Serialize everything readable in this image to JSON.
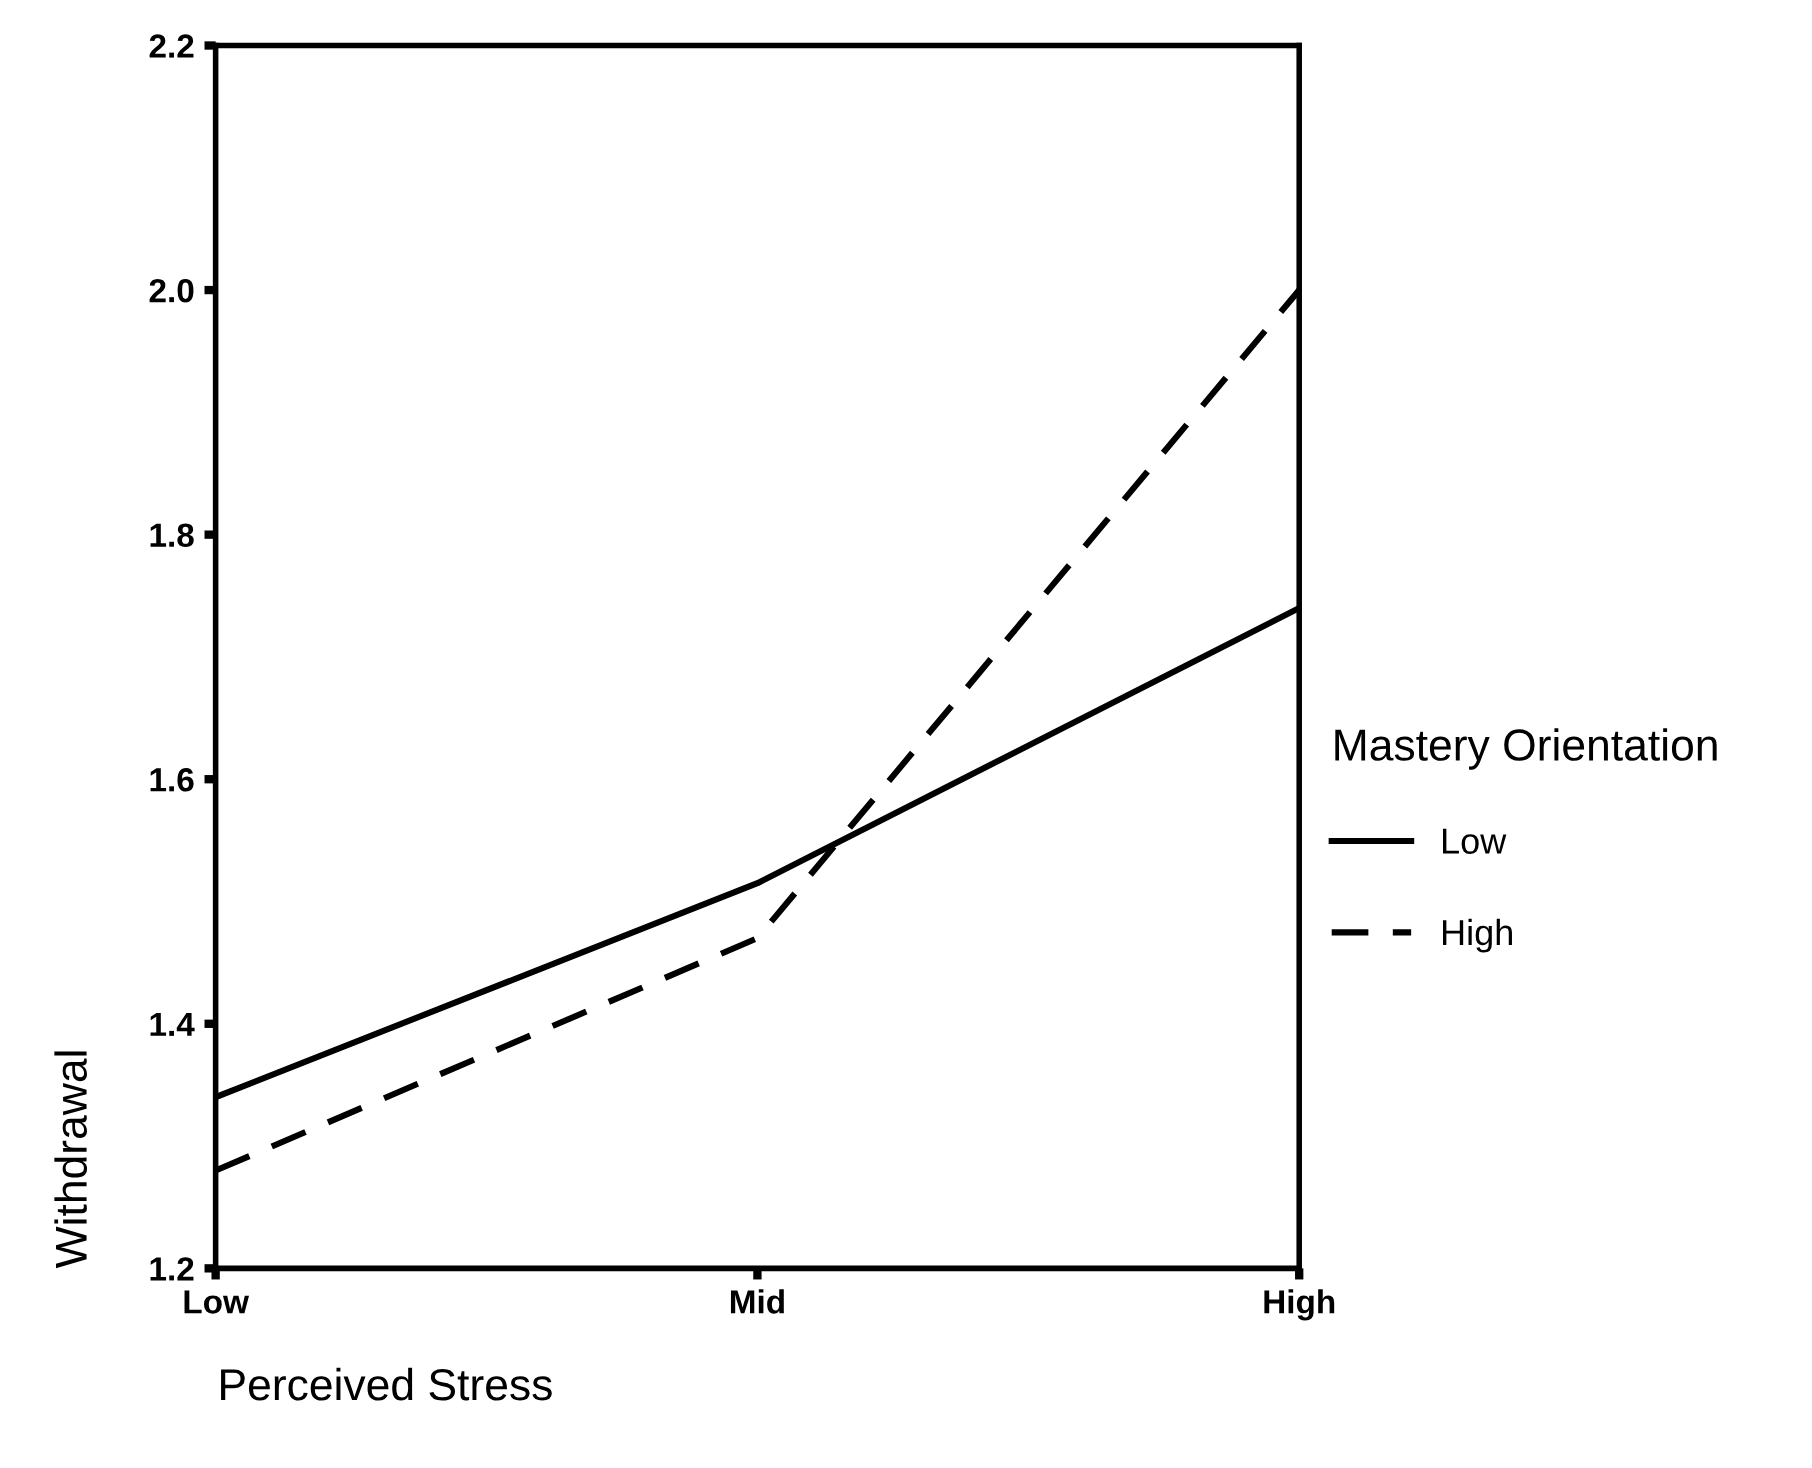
{
  "chart_data": {
    "type": "line",
    "xlabel": "Perceived Stress",
    "ylabel": "Withdrawal",
    "legend_title": "Mastery Orientation",
    "categories": [
      "Low",
      "Mid",
      "High"
    ],
    "series": [
      {
        "name": "Low",
        "color": "#000000",
        "line_style": "solid",
        "values": [
          1.34,
          1.515,
          1.74
        ]
      },
      {
        "name": "High",
        "color": "#000000",
        "line_style": "dashed",
        "values": [
          1.28,
          1.47,
          2.0
        ]
      }
    ],
    "ylim": [
      1.2,
      2.2
    ],
    "yticks": [
      1.2,
      1.4,
      1.6,
      1.8,
      {
        "value": 2.0,
        "label": "2.0"
      },
      2.2
    ],
    "grid": false,
    "legend": "right",
    "marker": "none"
  }
}
